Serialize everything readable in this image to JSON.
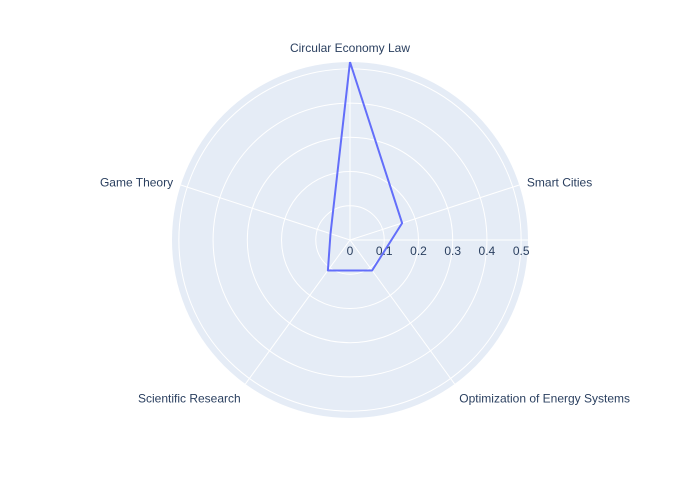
{
  "chart_data": {
    "type": "radar",
    "categories": [
      "Circular Economy Law",
      "Smart Cities",
      "Optimization of Energy Systems",
      "Scientific Research",
      "Game Theory"
    ],
    "series": [
      {
        "values": [
          0.52,
          0.16,
          0.11,
          0.11,
          0.06
        ],
        "color": "#636efa"
      }
    ],
    "radial_range": [
      0,
      0.52
    ],
    "radial_ticks": [
      0,
      0.1,
      0.2,
      0.3,
      0.4,
      0.5
    ],
    "tick_labels": [
      "0",
      "0.1",
      "0.2",
      "0.3",
      "0.4",
      "0.5"
    ],
    "angular_rotation_deg": 90,
    "direction": "clockwise",
    "grid": true,
    "background_color": "#e5ecf6",
    "grid_color": "#ffffff",
    "text_color": "#2a3f5f"
  }
}
